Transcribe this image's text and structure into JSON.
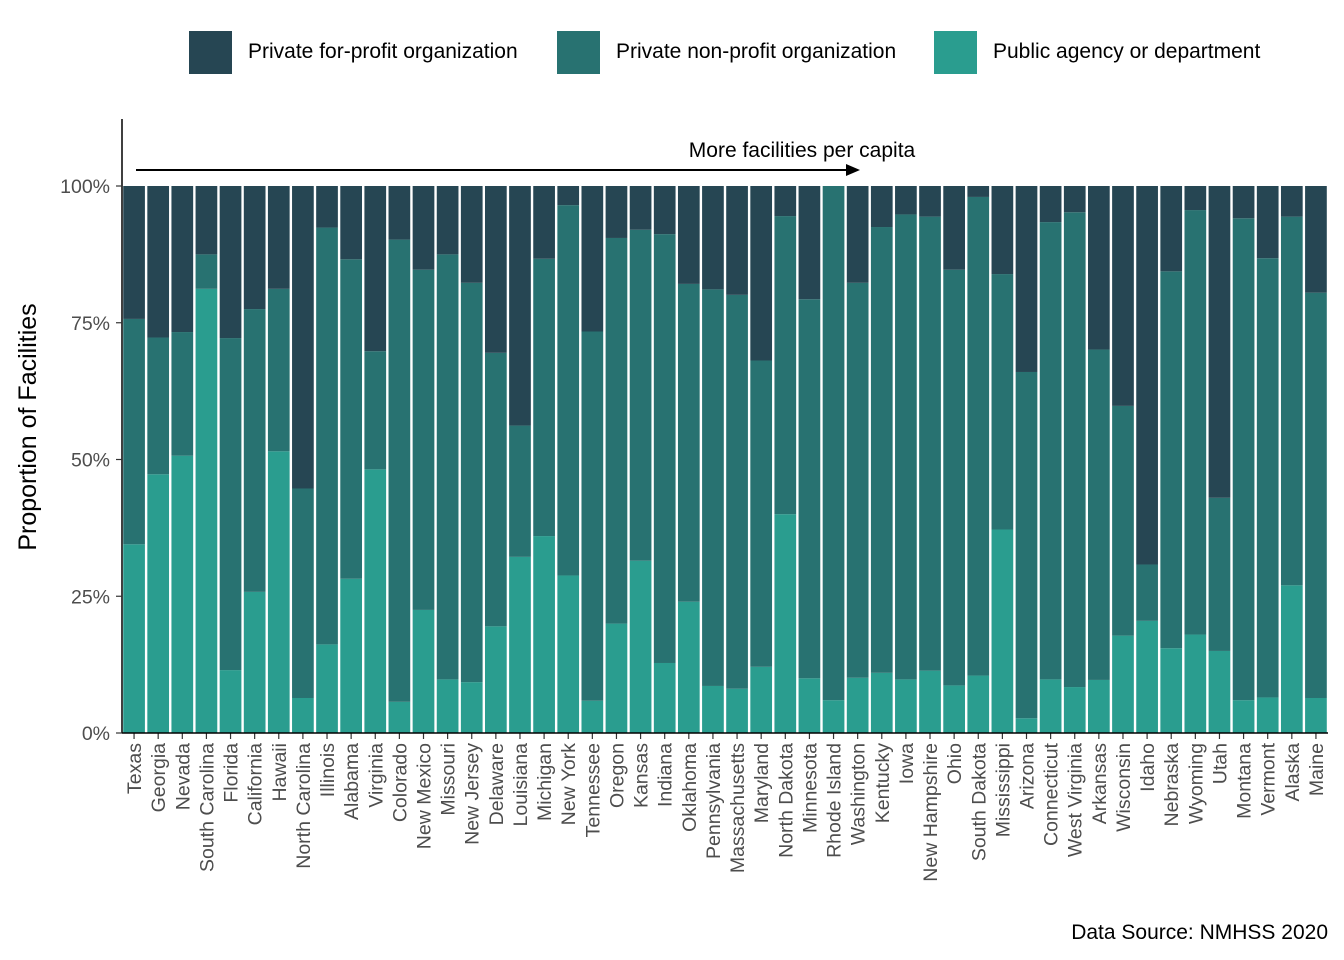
{
  "chart_data": {
    "type": "bar",
    "stacked": true,
    "ylabel": "Proportion of Facilities",
    "xlabel": "",
    "ylim": [
      0,
      1
    ],
    "yticks": [
      "0%",
      "25%",
      "50%",
      "75%",
      "100%"
    ],
    "annotation": "More facilities per capita",
    "source": "Data Source: NMHSS 2020",
    "legend_position": "top",
    "categories": [
      "Texas",
      "Georgia",
      "Nevada",
      "South Carolina",
      "Florida",
      "California",
      "Hawaii",
      "North Carolina",
      "Illinois",
      "Alabama",
      "Virginia",
      "Colorado",
      "New Mexico",
      "Missouri",
      "New Jersey",
      "Delaware",
      "Louisiana",
      "Michigan",
      "New York",
      "Tennessee",
      "Oregon",
      "Kansas",
      "Indiana",
      "Oklahoma",
      "Pennsylvania",
      "Massachusetts",
      "Maryland",
      "North Dakota",
      "Minnesota",
      "Rhode Island",
      "Washington",
      "Kentucky",
      "Iowa",
      "New Hampshire",
      "Ohio",
      "South Dakota",
      "Mississippi",
      "Arizona",
      "Connecticut",
      "West Virginia",
      "Arkansas",
      "Wisconsin",
      "Idaho",
      "Nebraska",
      "Wyoming",
      "Utah",
      "Montana",
      "Vermont",
      "Alaska",
      "Maine"
    ],
    "series": [
      {
        "name": "Public agency or department",
        "color": "#2a9d8f",
        "values": [
          0.345,
          0.473,
          0.507,
          0.812,
          0.115,
          0.258,
          0.515,
          0.064,
          0.162,
          0.282,
          0.482,
          0.057,
          0.225,
          0.098,
          0.093,
          0.195,
          0.322,
          0.36,
          0.288,
          0.059,
          0.2,
          0.315,
          0.128,
          0.24,
          0.086,
          0.081,
          0.121,
          0.4,
          0.1,
          0.06,
          0.101,
          0.11,
          0.098,
          0.114,
          0.087,
          0.105,
          0.372,
          0.027,
          0.098,
          0.084,
          0.097,
          0.178,
          0.205,
          0.155,
          0.18,
          0.15,
          0.06,
          0.065,
          0.27,
          0.064
        ]
      },
      {
        "name": "Private non-profit organization",
        "color": "#287271",
        "values": [
          0.412,
          0.25,
          0.226,
          0.063,
          0.607,
          0.517,
          0.297,
          0.383,
          0.762,
          0.584,
          0.216,
          0.845,
          0.622,
          0.777,
          0.73,
          0.5,
          0.24,
          0.507,
          0.677,
          0.675,
          0.705,
          0.605,
          0.784,
          0.581,
          0.725,
          0.72,
          0.56,
          0.545,
          0.693,
          0.94,
          0.722,
          0.815,
          0.85,
          0.83,
          0.76,
          0.875,
          0.467,
          0.633,
          0.836,
          0.868,
          0.604,
          0.42,
          0.103,
          0.689,
          0.776,
          0.28,
          0.881,
          0.803,
          0.674,
          0.741
        ]
      },
      {
        "name": "Private for-profit organization",
        "color": "#264653",
        "values": [
          0.243,
          0.277,
          0.267,
          0.125,
          0.278,
          0.225,
          0.188,
          0.553,
          0.076,
          0.134,
          0.302,
          0.098,
          0.153,
          0.125,
          0.177,
          0.305,
          0.438,
          0.133,
          0.035,
          0.266,
          0.095,
          0.08,
          0.088,
          0.179,
          0.189,
          0.199,
          0.319,
          0.055,
          0.207,
          0.0,
          0.177,
          0.075,
          0.052,
          0.056,
          0.153,
          0.02,
          0.161,
          0.34,
          0.066,
          0.048,
          0.299,
          0.402,
          0.692,
          0.156,
          0.044,
          0.57,
          0.059,
          0.132,
          0.056,
          0.195
        ]
      }
    ]
  },
  "legend": [
    {
      "label": "Private for-profit organization",
      "color": "#264653"
    },
    {
      "label": "Private non-profit organization",
      "color": "#287271"
    },
    {
      "label": "Public agency or department",
      "color": "#2a9d8f"
    }
  ]
}
